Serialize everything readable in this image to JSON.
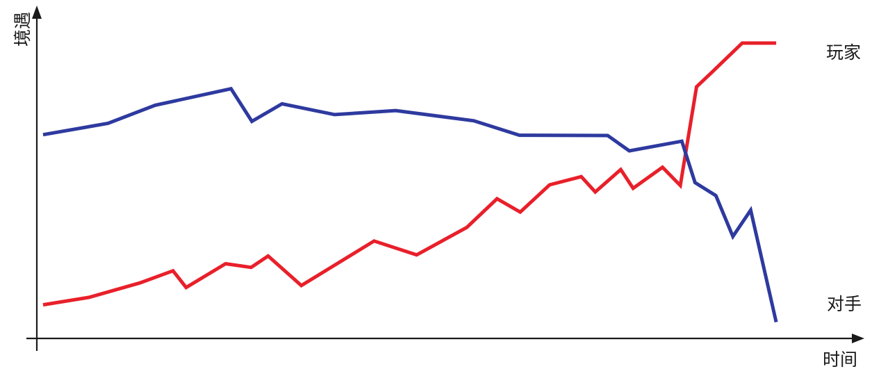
{
  "chart_data": {
    "type": "line",
    "xlabel": "时间",
    "ylabel": "境遇",
    "xlim": [
      0,
      100
    ],
    "ylim": [
      0,
      100
    ],
    "grid": false,
    "series": [
      {
        "name": "玩家",
        "color": "#e8202a",
        "x": [
          0,
          5.9,
          12.5,
          16.8,
          18.5,
          23.6,
          26.9,
          29.1,
          33.4,
          42.8,
          48.3,
          54.8,
          58.7,
          61.7,
          65.5,
          69.6,
          71.4,
          74.7,
          76.3,
          80.1,
          82.4,
          84.5,
          86.4,
          90.4,
          94.8
        ],
        "y": [
          7.2,
          9.8,
          14.9,
          19.2,
          13.3,
          21.7,
          20.4,
          24.4,
          14.0,
          29.7,
          24.8,
          34.5,
          44.6,
          39.9,
          49.5,
          52.4,
          47.0,
          54.9,
          48.3,
          55.7,
          49.3,
          84.1,
          89.0,
          99.5,
          99.5
        ],
        "label_position": "right"
      },
      {
        "name": "对手",
        "color": "#2e3a9f",
        "x": [
          0,
          8.4,
          14.5,
          24.3,
          27.0,
          30.9,
          37.7,
          45.6,
          55.7,
          61.6,
          73.0,
          75.8,
          82.6,
          84.3,
          87.0,
          89.2,
          91.5,
          94.8
        ],
        "y": [
          67.2,
          71.2,
          77.6,
          83.4,
          71.9,
          78.1,
          74.3,
          75.7,
          72.1,
          67.0,
          66.9,
          61.5,
          64.9,
          50.3,
          45.7,
          31.3,
          40.6,
          1.1
        ],
        "label_position": "right"
      }
    ],
    "series_labels": {
      "player": "玩家",
      "opponent": "对手"
    }
  }
}
